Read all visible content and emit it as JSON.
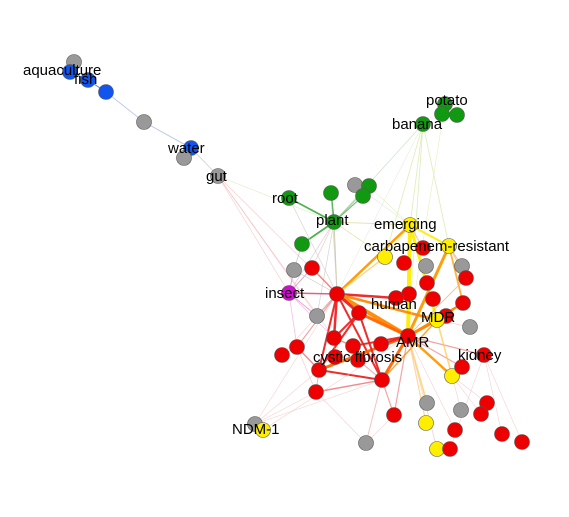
{
  "colors": {
    "red": "#ee0000",
    "green": "#119911",
    "blue": "#1155ee",
    "yellow": "#ffee00",
    "grey": "#999999",
    "magenta": "#cc11cc"
  },
  "labels": {
    "aquaculture": "aquaculture",
    "fish": "fish",
    "water": "water",
    "gut": "gut",
    "potato": "potato",
    "banana": "banana",
    "root": "root",
    "plant": "plant",
    "emerging": "emerging",
    "carbapenem": "carbapenem-resistant",
    "insect": "insect",
    "human": "human",
    "mdr": "MDR",
    "amr": "AMR",
    "kidney": "kidney",
    "cystic": "cystic fibrosis",
    "ndm": "NDM-1"
  }
}
